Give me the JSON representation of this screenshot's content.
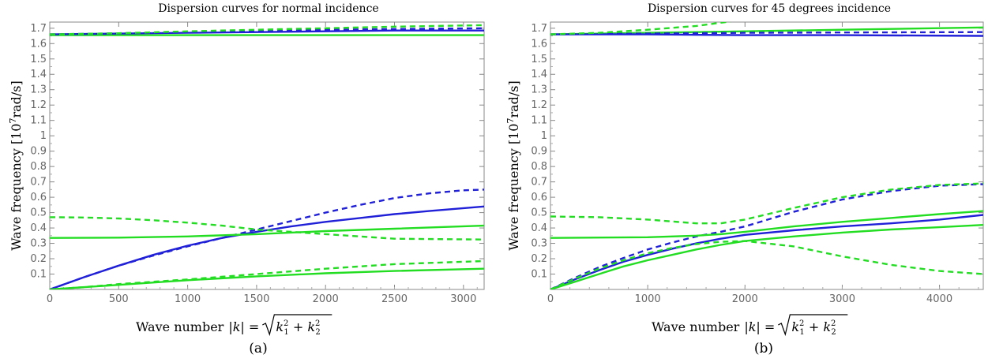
{
  "chart_data": [
    {
      "type": "line",
      "title": "Dispersion curves for normal incidence",
      "xlabel": "Wave number",
      "ylabel": "Wave frequency",
      "caption": "(a)",
      "xlim": [
        0,
        3150
      ],
      "ylim": [
        0,
        1.74
      ],
      "xticks": [
        0,
        500,
        1000,
        1500,
        2000,
        2500,
        3000
      ],
      "yticks": [
        0.1,
        0.2,
        0.3,
        0.4,
        0.5,
        0.6,
        0.7,
        0.8,
        0.9,
        1,
        1.1,
        1.2,
        1.3,
        1.4,
        1.5,
        1.6,
        1.7
      ],
      "grid": false,
      "colors": {
        "blue": "#2020d8",
        "green": "#22dd22"
      },
      "series": [
        {
          "color": "green",
          "style": "solid",
          "x": [
            0,
            1000,
            2000,
            3150
          ],
          "y": [
            1.655,
            1.655,
            1.655,
            1.655
          ]
        },
        {
          "color": "blue",
          "style": "solid",
          "x": [
            0,
            500,
            1000,
            1500,
            2000,
            2500,
            3150
          ],
          "y": [
            1.66,
            1.665,
            1.67,
            1.675,
            1.68,
            1.685,
            1.685
          ]
        },
        {
          "color": "blue",
          "style": "dashed",
          "x": [
            0,
            500,
            1000,
            1500,
            2000,
            2500,
            3150
          ],
          "y": [
            1.66,
            1.667,
            1.675,
            1.683,
            1.69,
            1.695,
            1.7
          ]
        },
        {
          "color": "green",
          "style": "dashed",
          "x": [
            0,
            500,
            1000,
            1500,
            2000,
            2500,
            3150
          ],
          "y": [
            1.66,
            1.667,
            1.68,
            1.69,
            1.7,
            1.71,
            1.72
          ]
        },
        {
          "color": "blue",
          "style": "solid",
          "x": [
            0,
            250,
            500,
            750,
            1000,
            1250,
            1500,
            1750,
            2000,
            2250,
            2500,
            2750,
            3150
          ],
          "y": [
            0,
            0.08,
            0.155,
            0.225,
            0.285,
            0.335,
            0.375,
            0.41,
            0.44,
            0.465,
            0.49,
            0.51,
            0.54
          ]
        },
        {
          "color": "blue",
          "style": "dashed",
          "x": [
            0,
            250,
            500,
            750,
            1000,
            1250,
            1500,
            1750,
            2000,
            2250,
            2500,
            2750,
            3000,
            3150
          ],
          "y": [
            0,
            0.08,
            0.155,
            0.22,
            0.28,
            0.335,
            0.39,
            0.445,
            0.5,
            0.55,
            0.595,
            0.625,
            0.645,
            0.65
          ]
        },
        {
          "color": "green",
          "style": "solid",
          "x": [
            0,
            500,
            1000,
            1500,
            2000,
            2500,
            3150
          ],
          "y": [
            0.335,
            0.337,
            0.345,
            0.36,
            0.38,
            0.395,
            0.415
          ]
        },
        {
          "color": "green",
          "style": "dashed",
          "x": [
            0,
            250,
            500,
            750,
            1000,
            1250,
            1500,
            2000,
            2500,
            3150
          ],
          "y": [
            0.47,
            0.468,
            0.462,
            0.45,
            0.435,
            0.415,
            0.39,
            0.36,
            0.33,
            0.325
          ]
        },
        {
          "color": "green",
          "style": "solid",
          "x": [
            0,
            250,
            500,
            1000,
            1500,
            2000,
            2500,
            3150
          ],
          "y": [
            0,
            0.015,
            0.03,
            0.06,
            0.085,
            0.105,
            0.12,
            0.135
          ]
        },
        {
          "color": "green",
          "style": "dashed",
          "x": [
            0,
            250,
            500,
            1000,
            1500,
            2000,
            2500,
            3150
          ],
          "y": [
            0,
            0.015,
            0.035,
            0.065,
            0.1,
            0.135,
            0.165,
            0.185
          ]
        }
      ]
    },
    {
      "type": "line",
      "title": "Dispersion curves for 45 degrees incidence",
      "xlabel": "Wave number",
      "ylabel": "Wave frequency",
      "caption": "(b)",
      "xlim": [
        0,
        4450
      ],
      "ylim": [
        0,
        1.74
      ],
      "xticks": [
        0,
        1000,
        2000,
        3000,
        4000
      ],
      "yticks": [
        0.1,
        0.2,
        0.3,
        0.4,
        0.5,
        0.6,
        0.7,
        0.8,
        0.9,
        1,
        1.1,
        1.2,
        1.3,
        1.4,
        1.5,
        1.6,
        1.7
      ],
      "grid": false,
      "colors": {
        "blue": "#2020d8",
        "green": "#22dd22"
      },
      "series": [
        {
          "color": "green",
          "style": "solid",
          "x": [
            0,
            1000,
            2000,
            3000,
            4450
          ],
          "y": [
            1.66,
            1.67,
            1.68,
            1.69,
            1.705
          ]
        },
        {
          "color": "blue",
          "style": "solid",
          "x": [
            0,
            1000,
            2000,
            3000,
            4450
          ],
          "y": [
            1.66,
            1.66,
            1.655,
            1.655,
            1.65
          ]
        },
        {
          "color": "blue",
          "style": "dashed",
          "x": [
            0,
            1000,
            2000,
            3000,
            4450
          ],
          "y": [
            1.66,
            1.665,
            1.67,
            1.672,
            1.675
          ]
        },
        {
          "color": "green",
          "style": "dashed",
          "x": [
            0,
            500,
            1000,
            1500,
            1800,
            2000
          ],
          "y": [
            1.66,
            1.67,
            1.69,
            1.715,
            1.74,
            1.76
          ]
        },
        {
          "color": "blue",
          "style": "solid",
          "x": [
            0,
            250,
            500,
            750,
            1000,
            1250,
            1500,
            1750,
            2000,
            2500,
            3000,
            3500,
            4000,
            4450
          ],
          "y": [
            0,
            0.065,
            0.125,
            0.18,
            0.225,
            0.265,
            0.3,
            0.33,
            0.355,
            0.385,
            0.41,
            0.43,
            0.455,
            0.485
          ]
        },
        {
          "color": "blue",
          "style": "dashed",
          "x": [
            0,
            250,
            500,
            750,
            1000,
            1250,
            1500,
            1750,
            2000,
            2500,
            3000,
            3500,
            4000,
            4450
          ],
          "y": [
            0,
            0.075,
            0.145,
            0.205,
            0.26,
            0.305,
            0.345,
            0.375,
            0.41,
            0.505,
            0.585,
            0.64,
            0.675,
            0.685
          ]
        },
        {
          "color": "green",
          "style": "solid",
          "x": [
            0,
            1000,
            1500,
            1750,
            2000,
            2500,
            3000,
            3500,
            4000,
            4450
          ],
          "y": [
            0.335,
            0.34,
            0.35,
            0.36,
            0.375,
            0.41,
            0.44,
            0.465,
            0.49,
            0.51
          ]
        },
        {
          "color": "green",
          "style": "dashed",
          "x": [
            0,
            500,
            1000,
            1500,
            1750,
            2000,
            2500,
            3000,
            3500,
            4000,
            4450
          ],
          "y": [
            0.475,
            0.47,
            0.455,
            0.43,
            0.43,
            0.455,
            0.53,
            0.6,
            0.65,
            0.68,
            0.69
          ]
        },
        {
          "color": "green",
          "style": "solid",
          "x": [
            0,
            250,
            500,
            750,
            1000,
            1250,
            1500,
            1750,
            2000,
            2500,
            3000,
            3500,
            4000,
            4450
          ],
          "y": [
            0,
            0.05,
            0.1,
            0.15,
            0.19,
            0.225,
            0.26,
            0.29,
            0.315,
            0.345,
            0.37,
            0.39,
            0.405,
            0.42
          ]
        },
        {
          "color": "green",
          "style": "dashed",
          "x": [
            0,
            250,
            500,
            750,
            1000,
            1250,
            1500,
            1750,
            2000,
            2500,
            3000,
            3500,
            4000,
            4450
          ],
          "y": [
            0,
            0.07,
            0.135,
            0.19,
            0.235,
            0.27,
            0.295,
            0.31,
            0.315,
            0.28,
            0.215,
            0.16,
            0.12,
            0.1
          ]
        }
      ]
    }
  ]
}
